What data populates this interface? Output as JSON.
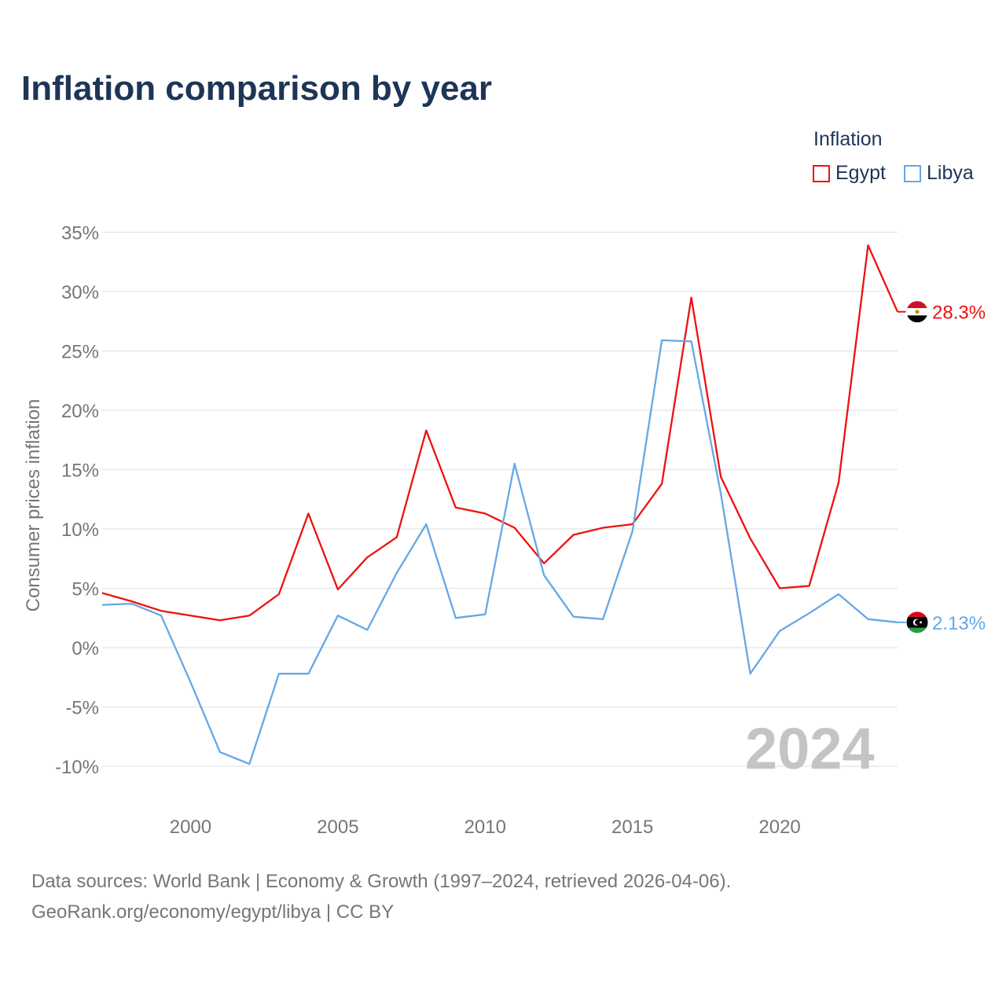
{
  "title": "Inflation comparison by year",
  "legend": {
    "title": "Inflation",
    "items": [
      {
        "label": "Egypt",
        "color": "#ee1111"
      },
      {
        "label": "Libya",
        "color": "#64a8e6"
      }
    ]
  },
  "watermark_year": "2024",
  "sources": {
    "line1": "Data sources: World Bank | Economy & Growth (1997–2024, retrieved 2026-04-06).",
    "line2": "GeoRank.org/economy/egypt/libya | CC BY"
  },
  "chart_data": {
    "type": "line",
    "title": "Inflation comparison by year",
    "xlabel": "",
    "ylabel": "Consumer prices inflation",
    "xlim": [
      1997,
      2024
    ],
    "ylim": [
      -12,
      36
    ],
    "grid": true,
    "legend_position": "top-right",
    "x_ticks": [
      {
        "value": 2000,
        "label": "2000"
      },
      {
        "value": 2005,
        "label": "2005"
      },
      {
        "value": 2010,
        "label": "2010"
      },
      {
        "value": 2015,
        "label": "2015"
      },
      {
        "value": 2020,
        "label": "2020"
      }
    ],
    "y_ticks": [
      {
        "value": 35,
        "label": "35%"
      },
      {
        "value": 30,
        "label": "30%"
      },
      {
        "value": 25,
        "label": "25%"
      },
      {
        "value": 20,
        "label": "20%"
      },
      {
        "value": 15,
        "label": "15%"
      },
      {
        "value": 10,
        "label": "10%"
      },
      {
        "value": 5,
        "label": "5%"
      },
      {
        "value": 0,
        "label": "0%"
      },
      {
        "value": -5,
        "label": "-5%"
      },
      {
        "value": -10,
        "label": "-10%"
      }
    ],
    "x": [
      1997,
      1998,
      1999,
      2000,
      2001,
      2002,
      2003,
      2004,
      2005,
      2006,
      2007,
      2008,
      2009,
      2010,
      2011,
      2012,
      2013,
      2014,
      2015,
      2016,
      2017,
      2018,
      2019,
      2020,
      2021,
      2022,
      2023,
      2024
    ],
    "series": [
      {
        "name": "Egypt",
        "color": "#ee1111",
        "end_label": "28.3%",
        "values": [
          4.6,
          3.9,
          3.1,
          2.7,
          2.3,
          2.7,
          4.5,
          11.3,
          4.9,
          7.6,
          9.3,
          18.3,
          11.8,
          11.3,
          10.1,
          7.1,
          9.5,
          10.1,
          10.4,
          13.8,
          29.5,
          14.4,
          9.2,
          5.0,
          5.2,
          13.9,
          33.9,
          28.3
        ]
      },
      {
        "name": "Libya",
        "color": "#64a8e6",
        "end_label": "2.13%",
        "values": [
          3.6,
          3.7,
          2.7,
          -2.9,
          -8.8,
          -9.8,
          -2.2,
          -2.2,
          2.7,
          1.5,
          6.3,
          10.4,
          2.5,
          2.8,
          15.5,
          6.1,
          2.6,
          2.4,
          9.8,
          25.9,
          25.8,
          13.0,
          -2.2,
          1.4,
          2.9,
          4.5,
          2.4,
          2.13
        ]
      }
    ]
  }
}
